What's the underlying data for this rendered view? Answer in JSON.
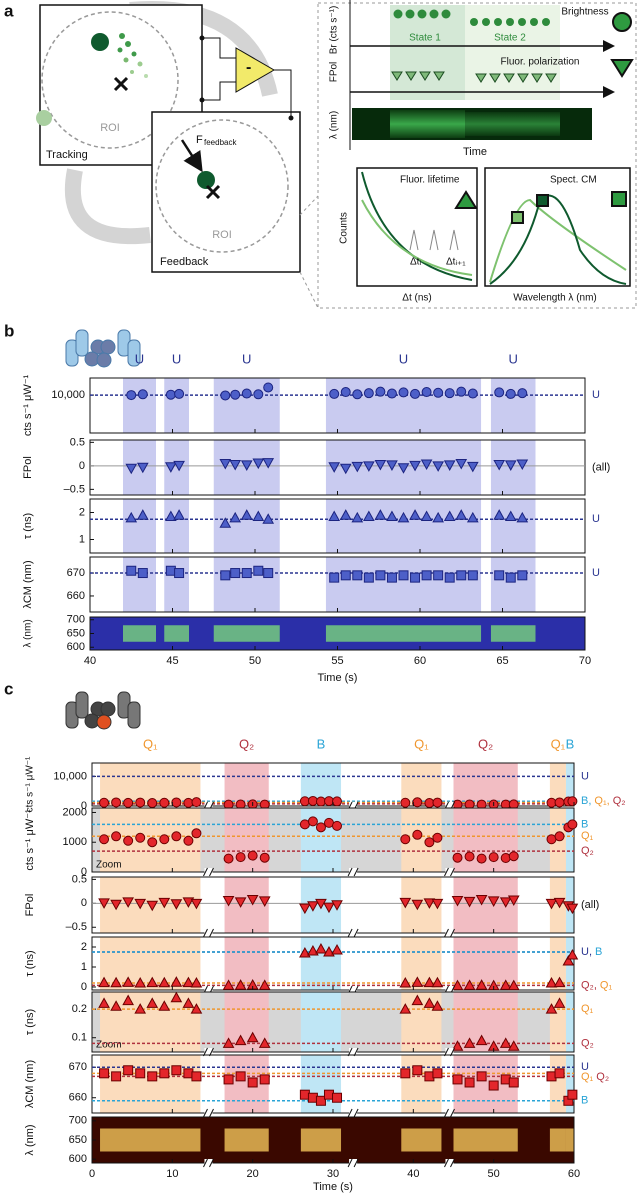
{
  "panel_labels": [
    "a",
    "b",
    "c"
  ],
  "panel_a": {
    "roi_tracking": "ROI",
    "tracking": "Tracking",
    "roi_feedback": "ROI",
    "feedback": "Feedback",
    "force_label": "F",
    "force_subscript": "feedback",
    "minus": "-",
    "brightness": "Brightness",
    "state_1": "State 1",
    "state_2": "State 2",
    "br_axis": "Br (cts s⁻¹)",
    "fpol_axis": "FPol",
    "fluor_polarization": "Fluor. polarization",
    "lambda_axis": "λ (nm)",
    "time": "Time",
    "fluor_lifetime": "Fluor. lifetime",
    "counts": "Counts",
    "dt_axis": "Δt (ns)",
    "dt_i": "Δtᵢ",
    "dt_i1": "Δtᵢ₊₁",
    "spect_cm": "Spect. CM",
    "wavelength_axis": "Wavelength  λ (nm)"
  },
  "chart_data": [
    {
      "type": "scatter",
      "xlim": [
        40,
        70
      ],
      "xticks": [
        40,
        45,
        50,
        55,
        60,
        65,
        70
      ],
      "xlabel": "Time (s)",
      "marker_fill": "#4d5fc8",
      "marker_stroke": "#1c2480",
      "regions": [
        {
          "start": 42,
          "end": 44,
          "label": "U",
          "color": "#c9cbf0",
          "label_color": "#2a3590"
        },
        {
          "start": 44.5,
          "end": 46,
          "label": "U",
          "color": "#c9cbf0",
          "label_color": "#2a3590"
        },
        {
          "start": 47.5,
          "end": 51.5,
          "label": "U",
          "color": "#c9cbf0",
          "label_color": "#2a3590"
        },
        {
          "start": 54.3,
          "end": 63.7,
          "label": "U",
          "color": "#c9cbf0",
          "label_color": "#2a3590"
        },
        {
          "start": 64.3,
          "end": 67,
          "label": "U",
          "color": "#c9cbf0",
          "label_color": "#2a3590"
        }
      ],
      "x": [
        42.5,
        43.2,
        44.9,
        45.4,
        48.2,
        48.8,
        49.5,
        50.2,
        50.8,
        54.8,
        55.5,
        56.2,
        56.9,
        57.6,
        58.3,
        59,
        59.7,
        60.4,
        61.1,
        61.8,
        62.5,
        63.2,
        64.8,
        65.5,
        66.2
      ],
      "subplots": [
        {
          "ylabel": "cts s⁻¹ μW⁻¹",
          "ylim": [
            0,
            14500
          ],
          "yticks": [
            {
              "value": 10000,
              "label": "10,000"
            }
          ],
          "marker": "circle",
          "values": [
            10000,
            10200,
            10100,
            10300,
            9900,
            10100,
            10400,
            10200,
            12000,
            10300,
            10800,
            10200,
            10500,
            10900,
            10400,
            10700,
            10300,
            10800,
            10600,
            10500,
            10900,
            10400,
            10700,
            10300,
            10500
          ],
          "hlines": [
            {
              "value": 10000,
              "color": "#2a3590",
              "label": "U"
            }
          ]
        },
        {
          "ylabel": "FPol",
          "ylim": [
            -0.62,
            0.55
          ],
          "yticks": [
            {
              "value": -0.5,
              "label": "–0.5"
            },
            0,
            0.5
          ],
          "marker": "triangle-down",
          "zero_line": true,
          "side_label": "(all)",
          "values": [
            -0.05,
            -0.03,
            -0.02,
            0.01,
            0.05,
            0.03,
            0.02,
            0.06,
            0.07,
            -0.02,
            -0.05,
            -0.01,
            0,
            0.03,
            0.02,
            -0.04,
            0.01,
            0.04,
            0,
            0.02,
            0.05,
            -0.01,
            0.03,
            0.02,
            0.04
          ]
        },
        {
          "ylabel": "τ (ns)",
          "ylim": [
            0.5,
            2.5
          ],
          "yticks": [
            1,
            2
          ],
          "marker": "triangle-up",
          "values": [
            1.8,
            1.9,
            1.85,
            1.9,
            1.6,
            1.8,
            1.9,
            1.85,
            1.75,
            1.85,
            1.9,
            1.8,
            1.85,
            1.9,
            1.85,
            1.8,
            1.9,
            1.85,
            1.8,
            1.85,
            1.9,
            1.8,
            1.9,
            1.85,
            1.8
          ],
          "hlines": [
            {
              "value": 1.75,
              "color": "#2a3590",
              "label": "U"
            }
          ]
        },
        {
          "ylabel": "λCM (nm)",
          "ylim": [
            653,
            677
          ],
          "yticks": [
            660,
            670
          ],
          "marker": "square",
          "values": [
            671,
            670,
            671,
            670,
            669,
            670,
            670,
            671,
            670,
            668,
            669,
            669,
            668,
            669,
            668,
            669,
            668,
            669,
            669,
            668,
            669,
            669,
            669,
            668,
            669
          ],
          "hlines": [
            {
              "value": 670,
              "color": "#2a3590",
              "label": "U"
            }
          ]
        },
        {
          "ylabel": "λ (nm)",
          "ylim": [
            590,
            710
          ],
          "yticks": [
            600,
            650,
            700
          ],
          "marker": "spectrogram",
          "colormap": [
            "#2b2fa8",
            "#7fe07a"
          ]
        }
      ]
    },
    {
      "type": "scatter",
      "xlim": [
        0,
        60
      ],
      "xticks": [
        0,
        10,
        20,
        30,
        40,
        50,
        60
      ],
      "xlabel": "Time (s)",
      "breaks": [
        14.5,
        32.5,
        44.5
      ],
      "marker_fill": "#e3262b",
      "marker_stroke": "#6b0000",
      "regions": [
        {
          "start": 1,
          "end": 13.5,
          "label": "Q₁",
          "color": "#fbdcbd",
          "label_color": "#f0962d"
        },
        {
          "start": 16.5,
          "end": 22,
          "label": "Q₂",
          "color": "#f2bdc3",
          "label_color": "#b0313e"
        },
        {
          "start": 26,
          "end": 31,
          "label": "B",
          "color": "#bfe6f5",
          "label_color": "#2aa4d6"
        },
        {
          "start": 38.5,
          "end": 43.5,
          "label": "Q₁",
          "color": "#fbdcbd",
          "label_color": "#f0962d"
        },
        {
          "start": 45,
          "end": 53,
          "label": "Q₂",
          "color": "#f2bdc3",
          "label_color": "#b0313e"
        },
        {
          "start": 57,
          "end": 59,
          "label": "Q₁",
          "color": "#fbdcbd",
          "label_color": "#f0962d"
        },
        {
          "start": 59,
          "end": 60,
          "label": "B",
          "color": "#bfe6f5",
          "label_color": "#2aa4d6"
        }
      ],
      "x": [
        1.5,
        3,
        4.5,
        6,
        7.5,
        9,
        10.5,
        12,
        13,
        17,
        18.5,
        20,
        21.5,
        26.5,
        27.5,
        28.5,
        29.5,
        30.5,
        39,
        40.5,
        42,
        43,
        45.5,
        47,
        48.5,
        50,
        51.5,
        52.5,
        57.2,
        58.2,
        59.3,
        59.8
      ],
      "subplots": [
        {
          "ylabel": "cts s⁻¹ μW⁻¹",
          "ylim": [
            0,
            14500
          ],
          "yticks": [
            0,
            {
              "value": 10000,
              "label": "10,000"
            }
          ],
          "marker": "circle",
          "values": [
            1100,
            1200,
            1050,
            1150,
            1000,
            1100,
            1200,
            1050,
            1300,
            450,
            500,
            550,
            480,
            1600,
            1700,
            1500,
            1650,
            1550,
            1100,
            1250,
            1000,
            1150,
            480,
            520,
            450,
            500,
            470,
            530,
            1100,
            1200,
            1500,
            1600
          ],
          "hlines": [
            {
              "value": 10000,
              "color": "#2a3590",
              "label": "U"
            },
            {
              "value": 1600,
              "color": "#2aa4d6",
              "label": "B,"
            },
            {
              "value": 1200,
              "color": "#f0962d",
              "label": "Q₁,"
            },
            {
              "value": 700,
              "color": "#b0313e",
              "label": "Q₂"
            }
          ]
        },
        {
          "ylabel": "cts s⁻¹ μW⁻¹",
          "ylim": [
            0,
            2150
          ],
          "yticks": [
            0,
            1000,
            2000
          ],
          "marker": "circle",
          "background": "#d6d6d6",
          "note": "Zoom",
          "values": [
            1100,
            1200,
            1050,
            1150,
            1000,
            1100,
            1200,
            1050,
            1300,
            450,
            500,
            550,
            480,
            1600,
            1700,
            1500,
            1650,
            1550,
            1100,
            1250,
            1000,
            1150,
            480,
            520,
            450,
            500,
            470,
            530,
            1100,
            1200,
            1500,
            1600
          ],
          "hlines": [
            {
              "value": 1600,
              "color": "#2aa4d6",
              "label": "B"
            },
            {
              "value": 1200,
              "color": "#f0962d",
              "label": "Q₁"
            },
            {
              "value": 700,
              "color": "#b0313e",
              "label": "Q₂"
            }
          ]
        },
        {
          "ylabel": "FPol",
          "ylim": [
            -0.62,
            0.55
          ],
          "yticks": [
            {
              "value": -0.5,
              "label": "–0.5"
            },
            0,
            0.5
          ],
          "marker": "triangle-down",
          "zero_line": true,
          "side_label": "(all)",
          "values": [
            0.01,
            -0.02,
            0.03,
            0,
            -0.04,
            0.02,
            -0.01,
            0.03,
            0,
            0.06,
            0.03,
            0.08,
            0.05,
            -0.1,
            -0.05,
            0,
            -0.08,
            -0.03,
            0.02,
            -0.02,
            0.01,
            0,
            0.06,
            0.04,
            0.08,
            0.05,
            0.03,
            0.07,
            0,
            0.02,
            -0.05,
            -0.1
          ]
        },
        {
          "ylabel": "τ (ns)",
          "ylim": [
            -0.15,
            2.5
          ],
          "yticks": [
            0,
            1,
            2
          ],
          "marker": "triangle-up",
          "values": [
            0.22,
            0.21,
            0.23,
            0.2,
            0.22,
            0.21,
            0.24,
            0.22,
            0.2,
            0.08,
            0.09,
            0.1,
            0.08,
            1.7,
            1.8,
            1.9,
            1.75,
            1.85,
            0.2,
            0.23,
            0.22,
            0.21,
            0.07,
            0.08,
            0.09,
            0.07,
            0.08,
            0.07,
            0.2,
            0.22,
            1.3,
            1.6
          ],
          "hlines": [
            {
              "value": 1.75,
              "color": "#2a3590",
              "label": "U,"
            },
            {
              "value": 1.75,
              "color": "#2aa4d6",
              "label": "B"
            },
            {
              "value": 0.08,
              "color": "#b0313e",
              "label": "Q₂,"
            },
            {
              "value": 0.2,
              "color": "#f0962d",
              "label": "Q₁"
            }
          ]
        },
        {
          "ylabel": "τ (ns)",
          "ylim": [
            0.05,
            0.26
          ],
          "yticks": [
            0.1,
            0.2
          ],
          "marker": "triangle-up",
          "background": "#d6d6d6",
          "note": "Zoom",
          "values": [
            0.22,
            0.21,
            0.23,
            0.2,
            0.22,
            0.21,
            0.24,
            0.22,
            0.2,
            0.08,
            0.09,
            0.1,
            0.08,
            null,
            null,
            null,
            null,
            null,
            0.2,
            0.23,
            0.22,
            0.21,
            0.07,
            0.08,
            0.09,
            0.07,
            0.08,
            0.07,
            0.2,
            0.22,
            null,
            null
          ],
          "hlines": [
            {
              "value": 0.2,
              "color": "#f0962d",
              "label": "Q₁"
            },
            {
              "value": 0.08,
              "color": "#b0313e",
              "label": "Q₂"
            }
          ]
        },
        {
          "ylabel": "λCM (nm)",
          "ylim": [
            655,
            674
          ],
          "yticks": [
            660,
            670
          ],
          "marker": "square",
          "values": [
            668,
            667,
            669,
            668,
            667,
            668,
            669,
            668,
            667,
            666,
            667,
            665,
            666,
            661,
            660,
            659,
            661,
            660,
            668,
            669,
            667,
            668,
            666,
            665,
            667,
            664,
            666,
            665,
            667,
            668,
            659,
            661
          ],
          "hlines": [
            {
              "value": 670,
              "color": "#2a3590",
              "label": "U"
            },
            {
              "value": 668,
              "color": "#f0962d",
              "label": "Q₁"
            },
            {
              "value": 667,
              "color": "#b0313e",
              "label": "Q₂"
            },
            {
              "value": 659,
              "color": "#2aa4d6",
              "label": "B"
            }
          ]
        },
        {
          "ylabel": "λ (nm)",
          "ylim": [
            590,
            710
          ],
          "yticks": [
            600,
            650,
            700
          ],
          "marker": "spectrogram",
          "colormap": [
            "#3a0800",
            "#ffd060"
          ]
        }
      ]
    }
  ]
}
